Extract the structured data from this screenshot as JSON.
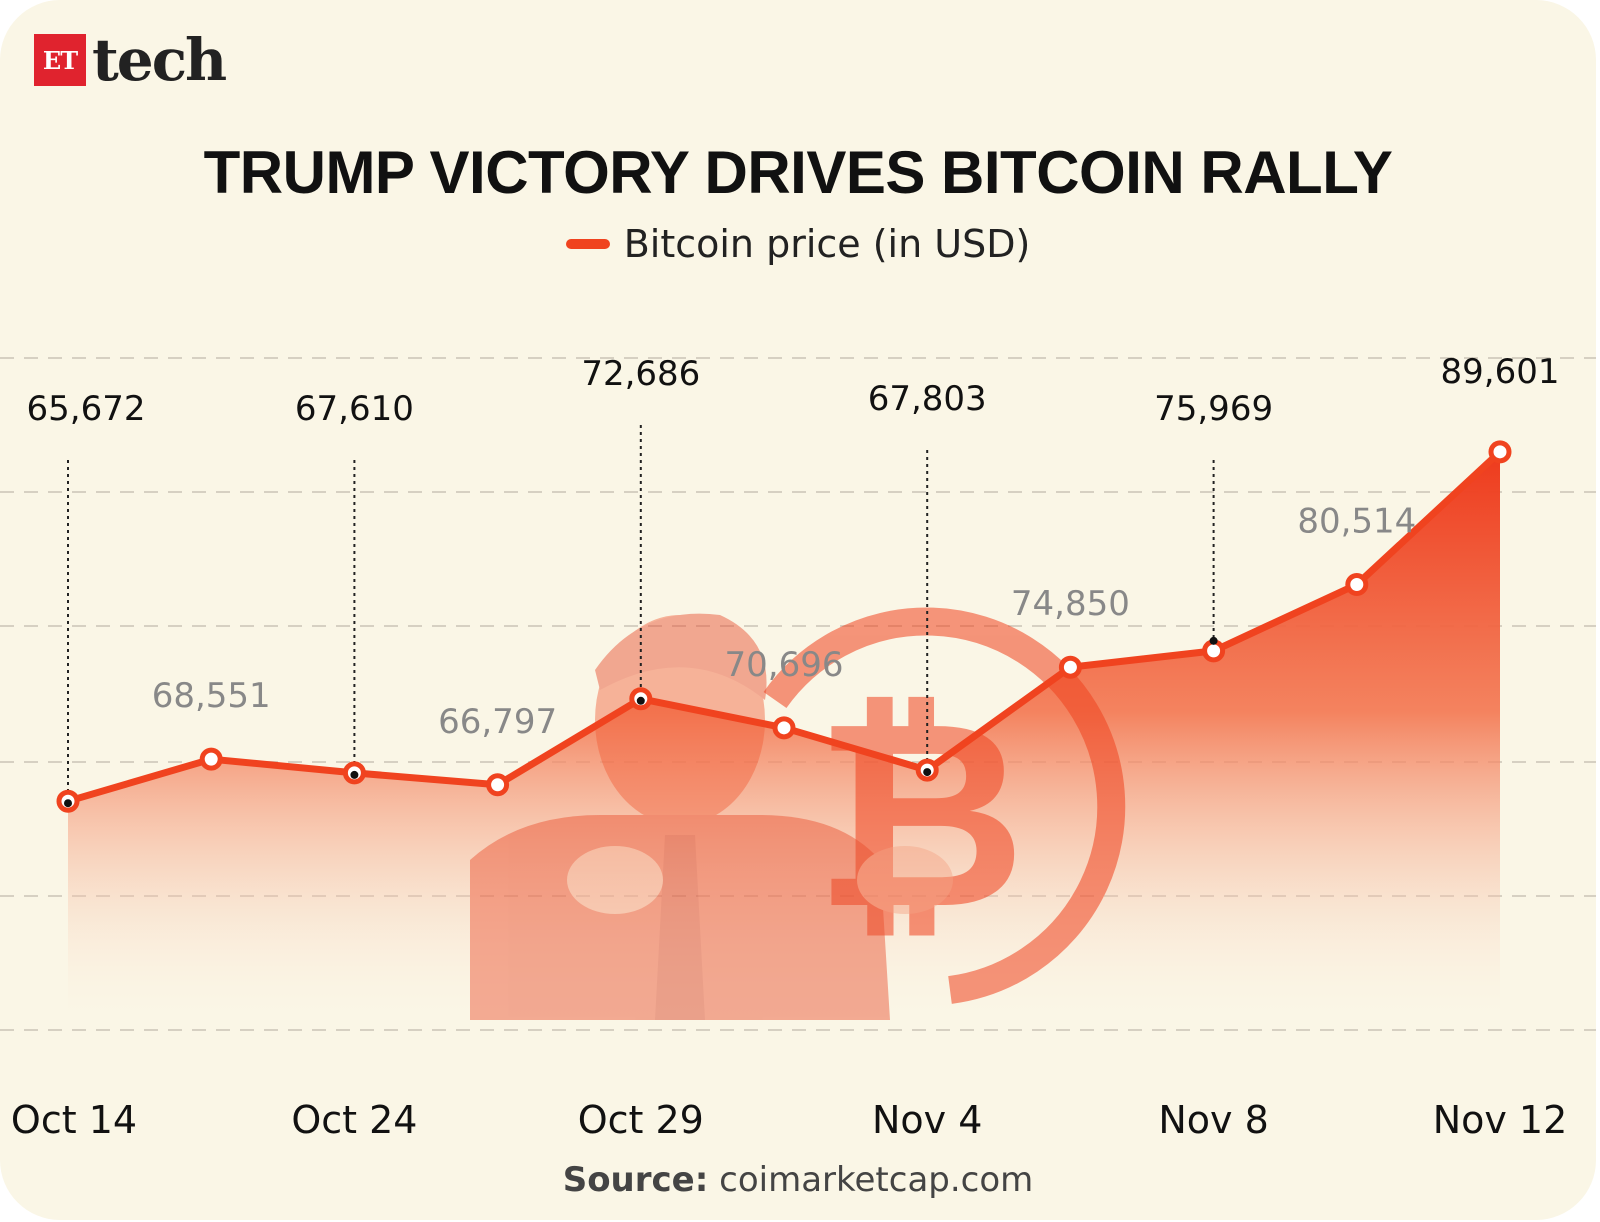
{
  "brand": {
    "logo_badge": "ET",
    "logo_word": "tech"
  },
  "chart_data": {
    "type": "area",
    "title": "TRUMP VICTORY DRIVES BITCOIN RALLY",
    "series": [
      {
        "name": "Bitcoin price (in USD)",
        "color": "#f0431f",
        "values": [
          65672,
          68551,
          67610,
          66797,
          72686,
          70696,
          67803,
          74850,
          75969,
          80514,
          89601
        ]
      }
    ],
    "point_labels": [
      "65,672",
      "68,551",
      "67,610",
      "66,797",
      "72,686",
      "70,696",
      "67,803",
      "74,850",
      "75,969",
      "80,514",
      "89,601"
    ],
    "highlighted": [
      true,
      false,
      true,
      false,
      true,
      false,
      true,
      false,
      true,
      false,
      true
    ],
    "x_tick_labels": [
      "Oct 14",
      "Oct 24",
      "Oct 29",
      "Nov 4",
      "Nov 8",
      "Nov 12"
    ],
    "xlabel": "",
    "ylabel": "",
    "grid": true,
    "legend_position": "top-center"
  },
  "source": {
    "label": "Source:",
    "text": "coimarketcap.com"
  }
}
